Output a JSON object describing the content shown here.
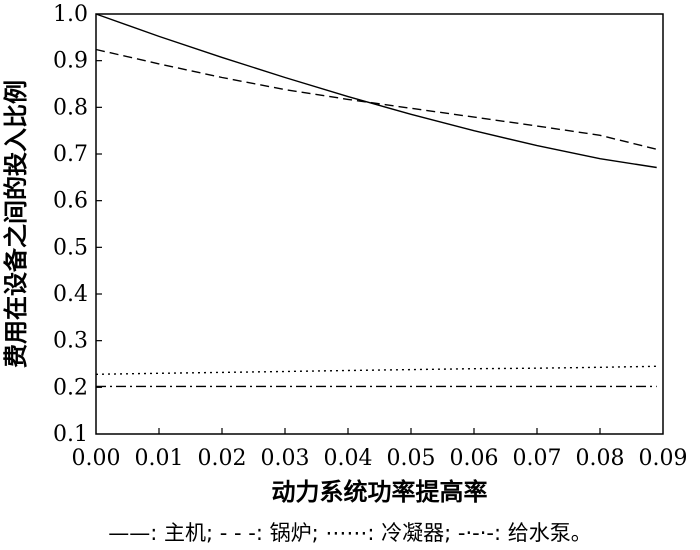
{
  "chart_data": {
    "type": "line",
    "xlabel": "动力系统功率提高率",
    "ylabel": "费用在设备之间的投入比例",
    "xlim": [
      0,
      0.09
    ],
    "ylim": [
      0.1,
      1.0
    ],
    "xticks": [
      "0.00",
      "0.01",
      "0.02",
      "0.03",
      "0.04",
      "0.05",
      "0.06",
      "0.07",
      "0.08",
      "0.09"
    ],
    "yticks": [
      "0.1",
      "0.2",
      "0.3",
      "0.4",
      "0.5",
      "0.6",
      "0.7",
      "0.8",
      "0.9",
      "1.0"
    ],
    "grid": false,
    "legend_position": "bottom",
    "series": [
      {
        "name": "主机",
        "style": "solid",
        "x": [
          0,
          0.01,
          0.02,
          0.03,
          0.04,
          0.05,
          0.06,
          0.07,
          0.08,
          0.089
        ],
        "values": [
          1.0,
          0.952,
          0.907,
          0.864,
          0.823,
          0.785,
          0.75,
          0.718,
          0.69,
          0.671
        ]
      },
      {
        "name": "锅炉",
        "style": "dashed",
        "x": [
          0,
          0.01,
          0.02,
          0.03,
          0.04,
          0.05,
          0.06,
          0.07,
          0.08,
          0.089
        ],
        "values": [
          0.924,
          0.893,
          0.864,
          0.838,
          0.817,
          0.798,
          0.779,
          0.76,
          0.74,
          0.71
        ]
      },
      {
        "name": "冷凝器",
        "style": "dotted",
        "x": [
          0,
          0.01,
          0.02,
          0.03,
          0.04,
          0.05,
          0.06,
          0.07,
          0.08,
          0.089
        ],
        "values": [
          0.228,
          0.23,
          0.232,
          0.234,
          0.236,
          0.238,
          0.24,
          0.241,
          0.243,
          0.245
        ]
      },
      {
        "name": "给水泵",
        "style": "dashdot",
        "x": [
          0,
          0.089
        ],
        "values": [
          0.202,
          0.202
        ]
      }
    ],
    "legend_items": [
      {
        "symbol": "——",
        "label": "主机",
        "suffix": ";"
      },
      {
        "symbol": "- - -",
        "label": "锅炉",
        "suffix": ";"
      },
      {
        "symbol": "⋯⋯",
        "label": "冷凝器",
        "suffix": ";"
      },
      {
        "symbol": "-·-·-",
        "label": "给水泵",
        "suffix": "。"
      }
    ]
  }
}
